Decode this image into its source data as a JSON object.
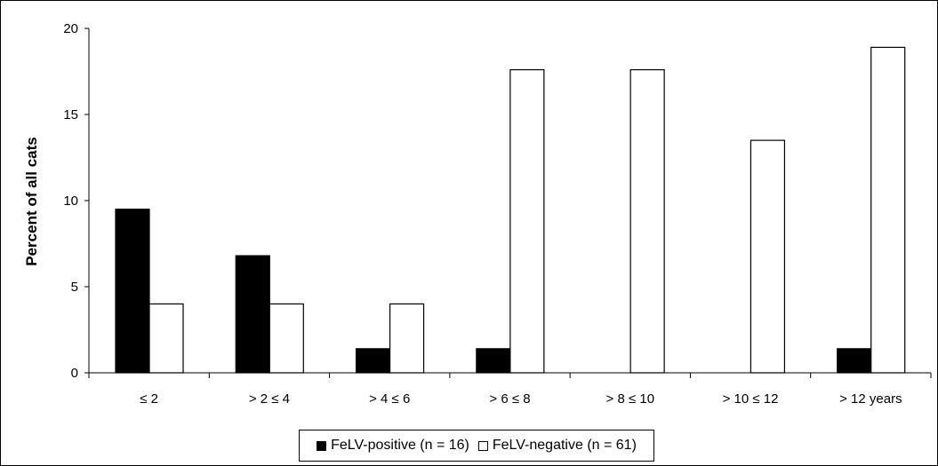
{
  "chart_data": {
    "type": "bar",
    "title": "",
    "xlabel": "",
    "ylabel": "Percent of all cats",
    "categories": [
      "≤ 2",
      "> 2 ≤ 4",
      "> 4 ≤ 6",
      "> 6 ≤ 8",
      "> 8 ≤ 10",
      "> 10 ≤ 12",
      "> 12 years"
    ],
    "ylim": [
      0,
      20
    ],
    "yticks": [
      0,
      5,
      10,
      15,
      20
    ],
    "grid": false,
    "legend_position": "bottom",
    "series": [
      {
        "name": "FeLV-positive (n = 16)",
        "color": "#000000",
        "values": [
          9.5,
          6.8,
          1.4,
          1.4,
          0,
          0,
          1.4
        ]
      },
      {
        "name": "FeLV-negative (n = 61)",
        "color": "#ffffff",
        "values": [
          4.0,
          4.0,
          4.0,
          17.6,
          17.6,
          13.5,
          18.9
        ]
      }
    ]
  }
}
